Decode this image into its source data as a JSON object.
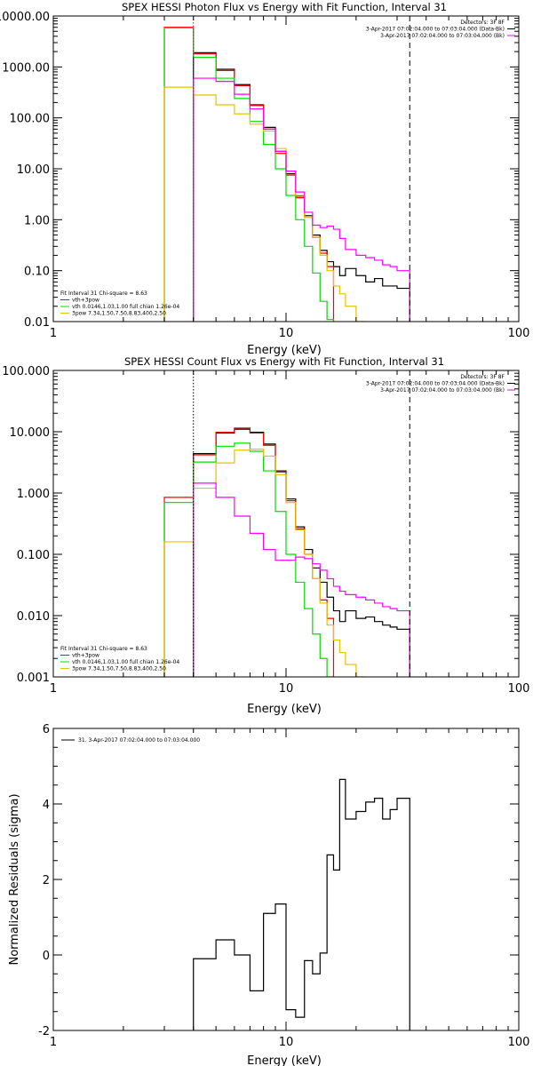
{
  "chart_data": [
    {
      "type": "line",
      "title": "SPEX HESSI Photon Flux vs Energy with Fit Function, Interval 31",
      "xlabel": "Energy (keV)",
      "ylabel": "",
      "x_scale": "log",
      "y_scale": "log",
      "xlim": [
        1,
        100
      ],
      "ylim": [
        0.01,
        10000
      ],
      "x_ticks": [
        1,
        10,
        100
      ],
      "x_tick_labels": [
        "1",
        "10",
        "100"
      ],
      "y_ticks": [
        0.01,
        0.1,
        1,
        10,
        100,
        1000,
        10000
      ],
      "y_tick_labels": [
        "0.01",
        "0.10",
        "1.00",
        "10.00",
        "100.00",
        "1000.00",
        "10000.00"
      ],
      "grid": false,
      "legend_placement": "bottom-left",
      "legend_header": "Fit Interval 31    Chi-square = 8.63",
      "legend": [
        {
          "label": "vth+3pow",
          "color": "#ff0000"
        },
        {
          "label": "vth 0.0146,1.03,1.00  full chian 1.26e-04",
          "color": "#00dd00"
        },
        {
          "label": "3pow 7.34,1.50,7.50,8.83,400,2.50",
          "color": "#e8c000"
        }
      ],
      "top_legend": [
        {
          "label": "Detectors: 3F 8F",
          "color": ""
        },
        {
          "label": "3-Apr-2017 07:02:04.000 to 07:03:04.000 (Data-Bk)",
          "color": "#000000"
        },
        {
          "label": "3-Apr-2017 07:02:04.000 to 07:03:04.000 (Bk)",
          "color": "#ff00ff"
        }
      ],
      "vlines": [
        {
          "x": 4.0,
          "color": "#aa00aa",
          "style": "dotted"
        },
        {
          "x": 34.0,
          "color": "#000000",
          "style": "dashed"
        }
      ],
      "x_edges": [
        3.0,
        4.0,
        5.0,
        6.0,
        7.0,
        8.0,
        9.0,
        10.0,
        11.0,
        12.0,
        13.0,
        14.0,
        15.0,
        16.0,
        17.0,
        18.0,
        20.0,
        22.0,
        24.0,
        26.0,
        28.0,
        30.0,
        34.0
      ],
      "series": [
        {
          "name": "Data-Bk",
          "color": "#000000",
          "values": [
            null,
            1900,
            900,
            450,
            180,
            65,
            22,
            8,
            2.9,
            1.2,
            0.5,
            0.25,
            0.15,
            0.12,
            0.08,
            0.11,
            0.08,
            0.06,
            0.07,
            0.05,
            0.05,
            0.045
          ]
        },
        {
          "name": "vth+3pow",
          "color": "#ff0000",
          "values": [
            6000,
            1800,
            850,
            430,
            175,
            60,
            20,
            7.5,
            2.7,
            1.1,
            0.45,
            0.22,
            0.12,
            null,
            null,
            null,
            null,
            null,
            null,
            null,
            null,
            null
          ]
        },
        {
          "name": "vth",
          "color": "#00dd00",
          "values": [
            5800,
            1550,
            600,
            240,
            85,
            30,
            10,
            3,
            1,
            0.3,
            0.09,
            0.025,
            0.011,
            null,
            null,
            null,
            null,
            null,
            null,
            null,
            null,
            null
          ]
        },
        {
          "name": "3pow",
          "color": "#e8c000",
          "values": [
            400,
            280,
            180,
            120,
            75,
            55,
            25,
            9,
            3,
            1.1,
            0.45,
            0.2,
            0.1,
            0.05,
            0.035,
            0.02,
            0.01,
            null,
            null,
            null,
            null,
            null
          ]
        },
        {
          "name": "Bk",
          "color": "#ff00ff",
          "values": [
            null,
            600,
            520,
            290,
            150,
            60,
            22,
            9,
            3.5,
            1.4,
            0.78,
            0.7,
            0.75,
            0.65,
            0.43,
            0.26,
            0.2,
            0.18,
            0.16,
            0.13,
            0.12,
            0.1
          ]
        }
      ]
    },
    {
      "type": "line",
      "title": "SPEX HESSI Count Flux vs Energy with Fit Function, Interval 31",
      "xlabel": "Energy (keV)",
      "ylabel": "",
      "x_scale": "log",
      "y_scale": "log",
      "xlim": [
        1,
        100
      ],
      "ylim": [
        0.001,
        100
      ],
      "x_ticks": [
        1,
        10,
        100
      ],
      "x_tick_labels": [
        "1",
        "10",
        "100"
      ],
      "y_ticks": [
        0.001,
        0.01,
        0.1,
        1,
        10,
        100
      ],
      "y_tick_labels": [
        "0.001",
        "0.010",
        "0.100",
        "1.000",
        "10.000",
        "100.000"
      ],
      "grid": false,
      "legend_placement": "bottom-left",
      "legend_header": "Fit Interval 31    Chi-square = 8.63",
      "legend": [
        {
          "label": "vth+3pow",
          "color": "#ff0000"
        },
        {
          "label": "vth 0.0146,1.03,1.00  full chian 1.26e-04",
          "color": "#00dd00"
        },
        {
          "label": "3pow 7.34,1.50,7.50,8.83,400,2.50",
          "color": "#e8c000"
        }
      ],
      "top_legend": [
        {
          "label": "Detectors: 3F 8F",
          "color": ""
        },
        {
          "label": "3-Apr-2017 07:02:04.000 to 07:03:04.000 (Data-Bk)",
          "color": "#000000"
        },
        {
          "label": "3-Apr-2017 07:02:04.000 to 07:03:04.000 (Bk)",
          "color": "#ff00ff"
        }
      ],
      "vlines": [
        {
          "x": 4.0,
          "color": "#000000",
          "style": "dotted"
        },
        {
          "x": 34.0,
          "color": "#000000",
          "style": "dashed"
        }
      ],
      "x_edges": [
        3.0,
        4.0,
        5.0,
        6.0,
        7.0,
        8.0,
        9.0,
        10.0,
        11.0,
        12.0,
        13.0,
        14.0,
        15.0,
        16.0,
        17.0,
        18.0,
        20.0,
        22.0,
        24.0,
        26.0,
        28.0,
        30.0,
        34.0
      ],
      "series": [
        {
          "name": "Data-Bk",
          "color": "#000000",
          "values": [
            null,
            4.4,
            9.5,
            11,
            9.8,
            6.3,
            2.3,
            0.8,
            0.28,
            0.12,
            0.06,
            0.035,
            0.02,
            0.012,
            0.008,
            0.012,
            0.009,
            0.0095,
            0.008,
            0.007,
            0.0065,
            0.006
          ]
        },
        {
          "name": "vth+3pow",
          "color": "#ff0000",
          "values": [
            0.85,
            4.2,
            9.8,
            11.5,
            9.5,
            6.0,
            2.2,
            0.75,
            0.26,
            0.1,
            0.04,
            0.018,
            0.009,
            null,
            null,
            null,
            null,
            null,
            null,
            null,
            null,
            null
          ]
        },
        {
          "name": "vth",
          "color": "#00dd00",
          "values": [
            0.7,
            3.2,
            5.8,
            6.5,
            4.8,
            2.3,
            0.5,
            0.1,
            0.035,
            0.013,
            0.005,
            0.002,
            0.001,
            null,
            null,
            null,
            null,
            null,
            null,
            null,
            null,
            null
          ]
        },
        {
          "name": "3pow",
          "color": "#e8c000",
          "values": [
            0.16,
            1.2,
            3.1,
            5.0,
            5.2,
            4.0,
            2.0,
            0.7,
            0.25,
            0.1,
            0.04,
            0.016,
            0.007,
            0.004,
            0.0025,
            0.0016,
            0.001,
            null,
            null,
            null,
            null,
            null
          ]
        },
        {
          "name": "Bk",
          "color": "#ff00ff",
          "values": [
            null,
            1.45,
            0.85,
            0.42,
            0.22,
            0.12,
            0.08,
            0.08,
            0.09,
            0.085,
            0.07,
            0.055,
            0.04,
            0.03,
            0.025,
            0.022,
            0.02,
            0.018,
            0.016,
            0.014,
            0.013,
            0.012
          ]
        }
      ]
    },
    {
      "type": "line",
      "title": "",
      "xlabel": "Energy (keV)",
      "ylabel": "Normalized Residuals (sigma)",
      "x_scale": "log",
      "y_scale": "linear",
      "xlim": [
        1,
        100
      ],
      "ylim": [
        -2,
        6
      ],
      "x_ticks": [
        1,
        10,
        100
      ],
      "x_tick_labels": [
        "1",
        "10",
        "100"
      ],
      "y_ticks": [
        -2,
        0,
        2,
        4,
        6
      ],
      "y_tick_labels": [
        "-2",
        "0",
        "2",
        "4",
        "6"
      ],
      "grid": false,
      "legend_placement": "top-left",
      "legend": [
        {
          "label": "31.  3-Apr-2017 07:02:04.000 to 07:03:04.000",
          "color": "#000000"
        }
      ],
      "x_edges": [
        4.0,
        5.0,
        6.0,
        7.0,
        8.0,
        9.0,
        10.0,
        11.0,
        12.0,
        13.0,
        14.0,
        15.0,
        16.0,
        17.0,
        18.0,
        20.0,
        22.0,
        24.0,
        26.0,
        28.0,
        30.0,
        34.0
      ],
      "series": [
        {
          "name": "31",
          "color": "#000000",
          "values": [
            -0.1,
            0.4,
            0.0,
            -0.95,
            1.1,
            1.35,
            -1.45,
            -1.65,
            -0.15,
            -0.5,
            0.05,
            2.65,
            2.25,
            4.65,
            3.6,
            3.8,
            4.05,
            4.15,
            3.6,
            3.85,
            4.15
          ]
        }
      ]
    }
  ]
}
